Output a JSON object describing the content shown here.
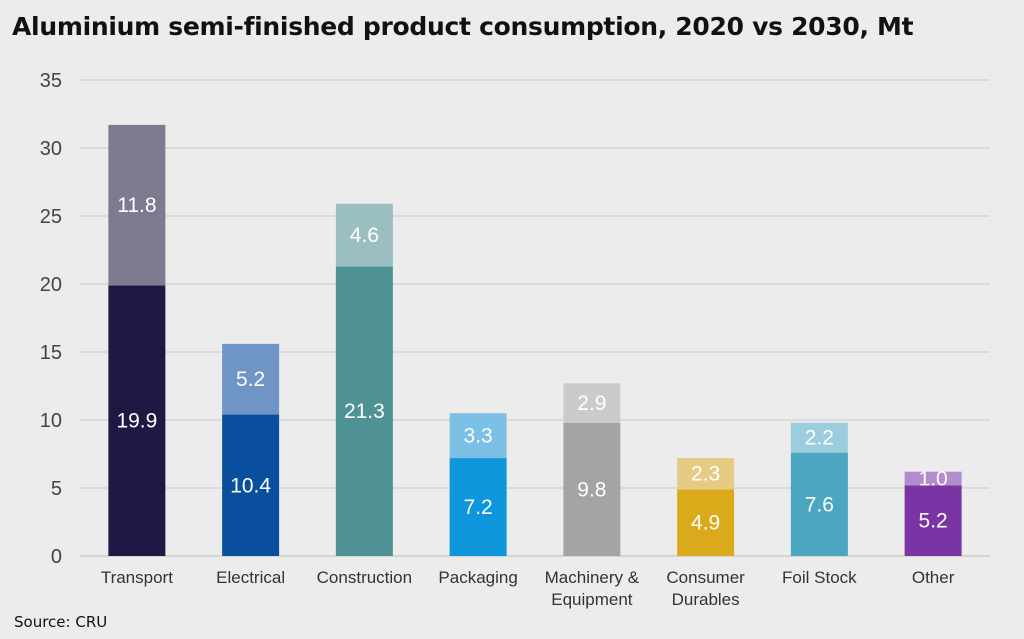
{
  "title": "Aluminium semi-finished product consumption, 2020 vs 2030, Mt",
  "source": "Source: CRU",
  "chart_data": {
    "type": "bar",
    "stacked": true,
    "title": "Aluminium semi-finished product consumption, 2020 vs 2030, Mt",
    "xlabel": "",
    "ylabel": "",
    "ylim": [
      0,
      35
    ],
    "yticks": [
      0,
      5,
      10,
      15,
      20,
      25,
      30,
      35
    ],
    "grid": true,
    "legend": "none",
    "categories": [
      [
        "Transport"
      ],
      [
        "Electrical"
      ],
      [
        "Construction"
      ],
      [
        "Packaging"
      ],
      [
        "Machinery &",
        "Equipment"
      ],
      [
        "Consumer",
        "Durables"
      ],
      [
        "Foil Stock"
      ],
      [
        "Other"
      ]
    ],
    "series": [
      {
        "values": [
          19.9,
          10.4,
          21.3,
          7.2,
          9.8,
          4.9,
          7.6,
          5.2
        ]
      },
      {
        "values": [
          11.8,
          5.2,
          4.6,
          3.3,
          2.9,
          2.3,
          2.2,
          1.0
        ]
      }
    ],
    "colors": {
      "base": [
        "#1e1844",
        "#0a4e9e",
        "#4e9294",
        "#0e96dc",
        "#a4a4a4",
        "#dbaa1b",
        "#4ba6c1",
        "#7a34a4"
      ],
      "increment": [
        "#807a91",
        "#6e95c5",
        "#9bbfc1",
        "#7cc1e5",
        "#cbcbcb",
        "#e6cb85",
        "#9ccddd",
        "#b48ccb"
      ]
    }
  }
}
